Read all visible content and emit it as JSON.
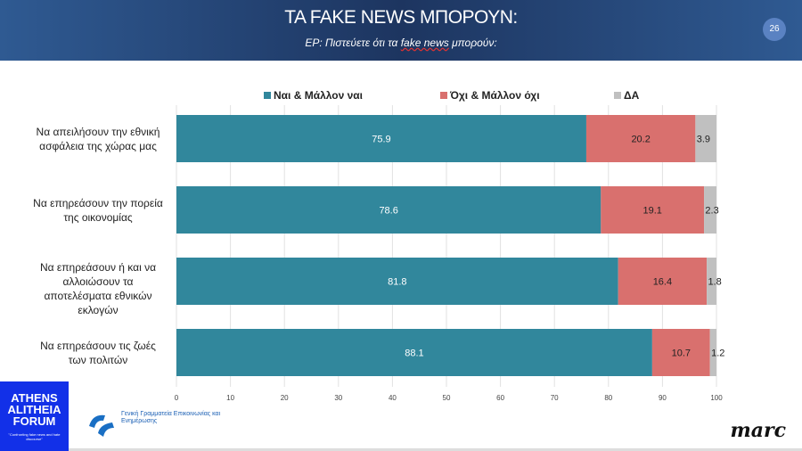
{
  "header": {
    "title": "ΤΑ FAKE NEWS ΜΠΟΡΟΥΝ:",
    "subtitle_prefix": "ΕΡ: Πιστεύετε ότι τα ",
    "subtitle_underlined": "fake news",
    "subtitle_suffix": " μπορούν:",
    "page_number": "26"
  },
  "logos": {
    "aaf": "ATHENS ALITHEIA FORUM",
    "aaf_tagline": "\"Confronting fake news and hate discourse\"",
    "gg": "Γενική Γραμματεία Επικοινωνίας και Ενημέρωσης",
    "marc": "marc"
  },
  "chart_data": {
    "type": "bar",
    "orientation": "horizontal",
    "stacked": true,
    "categories": [
      "Να απειλήσουν την εθνική ασφάλεια της χώρας μας",
      "Να επηρεάσουν την πορεία της  οικονομίας",
      "Να επηρεάσουν ή και να αλλοιώσουν τα αποτελέσματα εθνικών εκλογών",
      "Να επηρεάσουν τις ζωές των πολιτών"
    ],
    "series": [
      {
        "name": "Ναι & Μάλλον ναι",
        "color": "#31879c",
        "values": [
          75.9,
          78.6,
          81.8,
          88.1
        ]
      },
      {
        "name": "Όχι & Μάλλον όχι",
        "color": "#d9706e",
        "values": [
          20.2,
          19.1,
          16.4,
          10.7
        ]
      },
      {
        "name": "ΔΑ",
        "color": "#c0c0c0",
        "values": [
          3.9,
          2.3,
          1.8,
          1.2
        ]
      }
    ],
    "xlim": [
      0,
      100
    ],
    "xticks": [
      "0",
      "10",
      "20",
      "30",
      "40",
      "50",
      "60",
      "70",
      "80",
      "90",
      "100"
    ],
    "grid": true,
    "legend": "top"
  }
}
